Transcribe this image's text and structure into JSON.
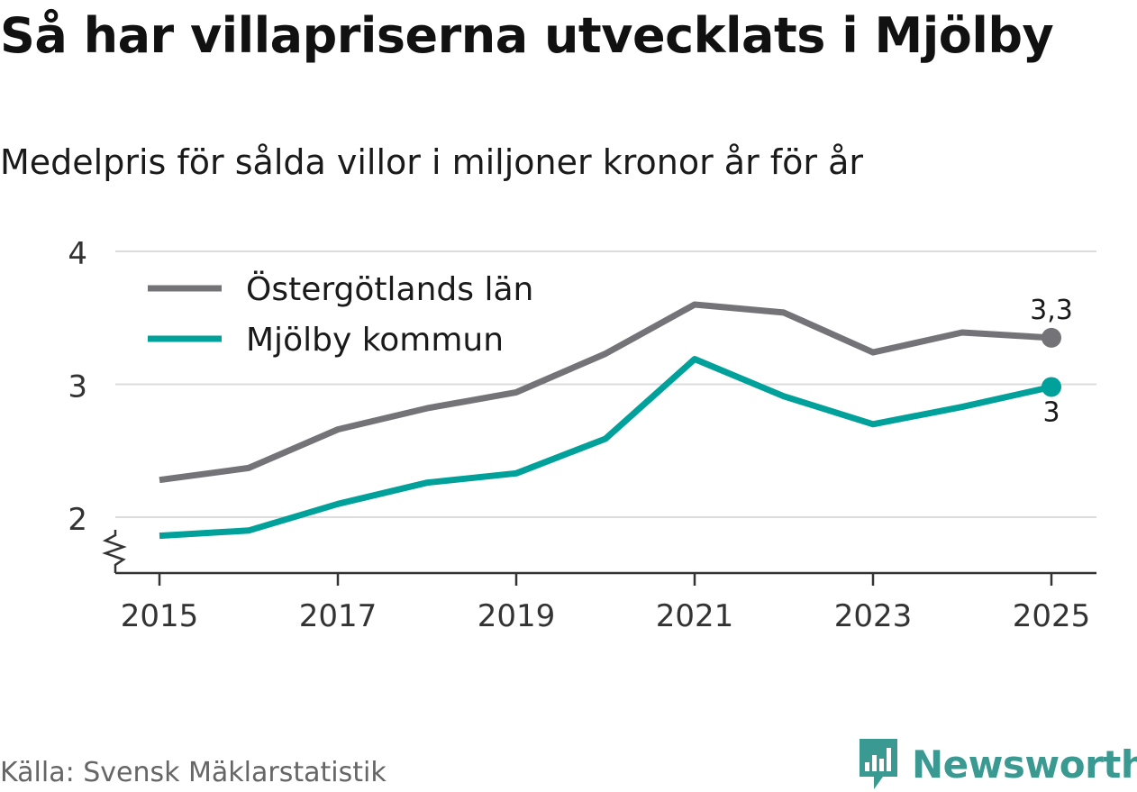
{
  "title": "Så har villapriserna utvecklats i Mjölby",
  "subtitle": "Medelpris för sålda villor i miljoner kronor år för år",
  "source": "Källa: Svensk Mäklarstatistik",
  "brand": {
    "name": "Newsworthy",
    "icon": "newsworthy-logo-icon",
    "color": "#3a9a92"
  },
  "colors": {
    "grid": "#dcdcdc",
    "axis": "#333333",
    "text": "#333333"
  },
  "chart_data": {
    "type": "line",
    "title": "Så har villapriserna utvecklats i Mjölby",
    "subtitle": "Medelpris för sålda villor i miljoner kronor år för år",
    "xlabel": "",
    "ylabel": "",
    "x": [
      2015,
      2016,
      2017,
      2018,
      2019,
      2020,
      2021,
      2022,
      2023,
      2024,
      2025
    ],
    "xticks": [
      "2015",
      "2017",
      "2019",
      "2021",
      "2023",
      "2025"
    ],
    "yticks": [
      "2",
      "3",
      "4"
    ],
    "ylim": [
      1.6,
      4.0
    ],
    "axis_break": true,
    "grid": true,
    "legend_position": "top-left",
    "series": [
      {
        "name": "Östergötlands län",
        "color": "#747378",
        "values": [
          2.28,
          2.37,
          2.66,
          2.82,
          2.94,
          3.23,
          3.6,
          3.54,
          3.24,
          3.39,
          3.35
        ],
        "end_label": "3,3"
      },
      {
        "name": "Mjölby kommun",
        "color": "#00a19a",
        "values": [
          1.86,
          1.9,
          2.1,
          2.26,
          2.33,
          2.59,
          3.19,
          2.91,
          2.7,
          2.83,
          2.98
        ],
        "end_label": "3"
      }
    ]
  }
}
